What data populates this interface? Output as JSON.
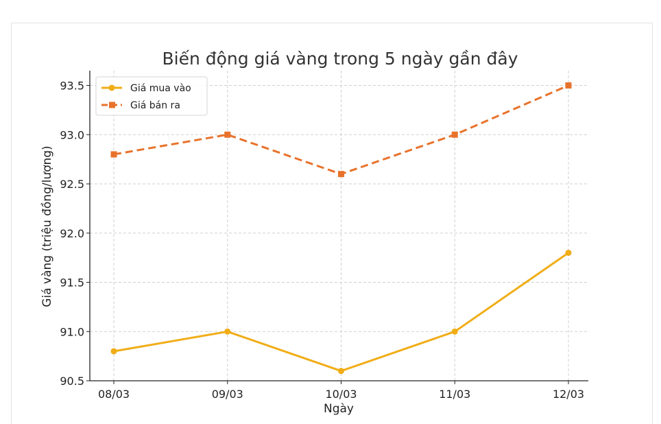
{
  "chart_data": {
    "type": "line",
    "title": "Biến động giá vàng trong 5 ngày gần đây",
    "xlabel": "Ngày",
    "ylabel": "Giá vàng (triệu đồng/lượng)",
    "categories": [
      "08/03",
      "09/03",
      "10/03",
      "11/03",
      "12/03"
    ],
    "ylim": [
      90.5,
      93.65
    ],
    "yticks": [
      "90.5",
      "91.0",
      "91.5",
      "92.0",
      "92.5",
      "93.0",
      "93.5"
    ],
    "grid": true,
    "legend_position": "top-left",
    "series": [
      {
        "name": "Giá mua vào",
        "values": [
          90.8,
          91.0,
          90.6,
          91.0,
          91.8
        ],
        "color": "#f0ad16",
        "line": "solid",
        "marker": "circle"
      },
      {
        "name": "Giá bán ra",
        "values": [
          92.8,
          93.0,
          92.6,
          93.0,
          93.5
        ],
        "color": "#e8722b",
        "line": "dashed",
        "marker": "square"
      }
    ]
  }
}
